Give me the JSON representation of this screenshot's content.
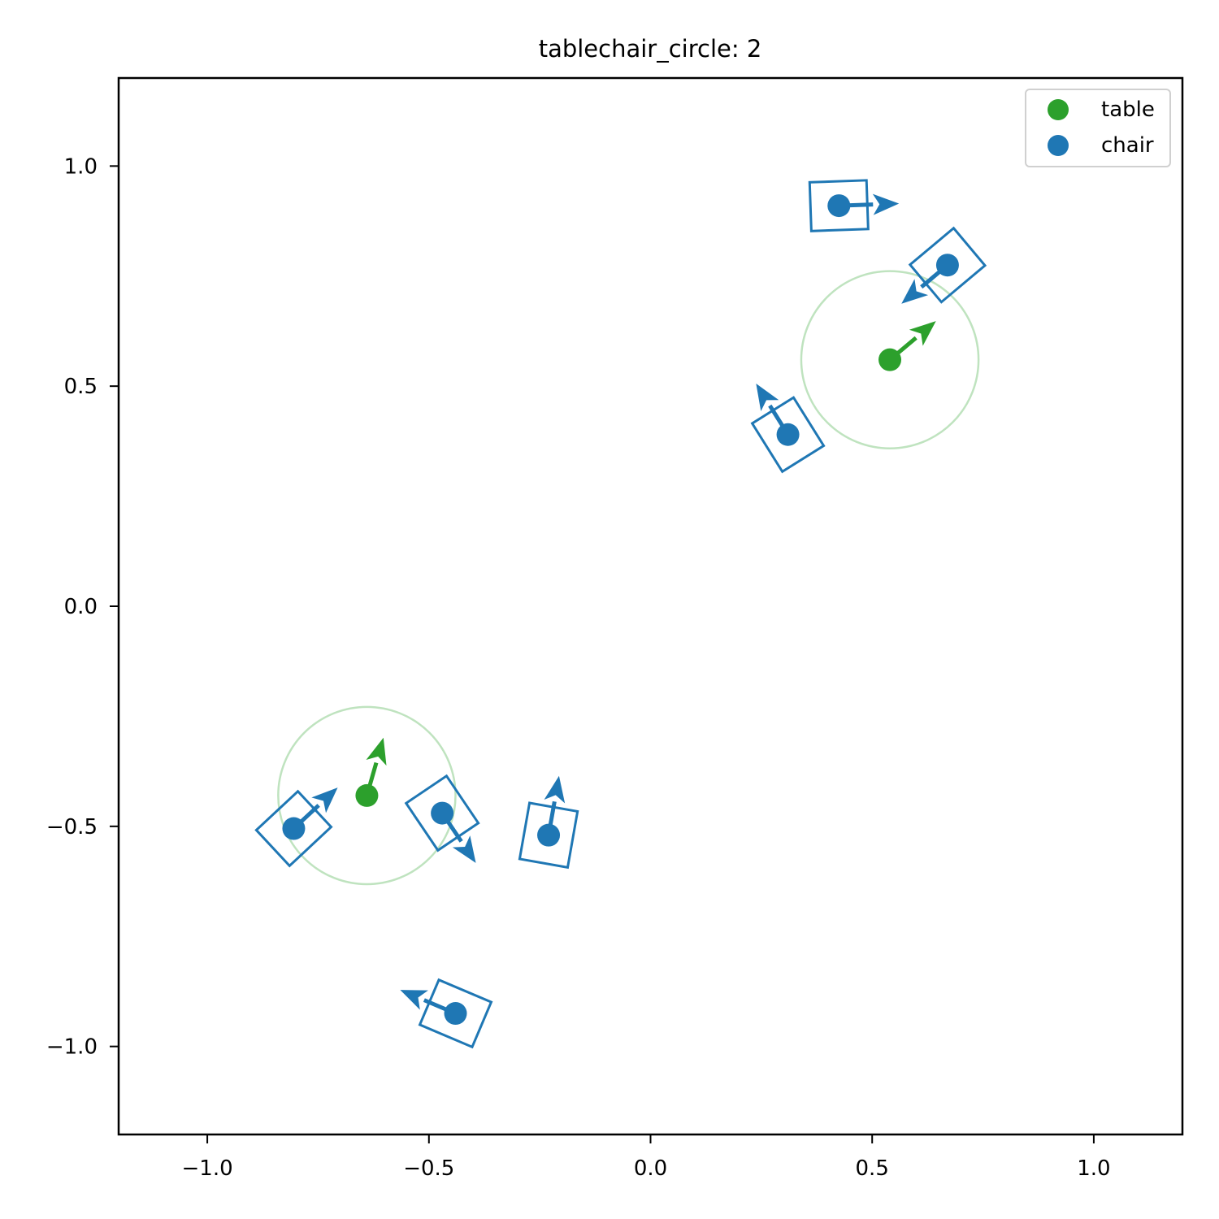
{
  "chart_data": {
    "type": "scatter",
    "title": "tablechair_circle: 2",
    "xlabel": "",
    "ylabel": "",
    "xlim": [
      -1.2,
      1.2
    ],
    "ylim": [
      -1.2,
      1.2
    ],
    "grid": false,
    "legend_position": "top-right",
    "x_ticks": [
      -1.0,
      -0.5,
      0.0,
      0.5,
      1.0
    ],
    "x_tick_labels": [
      "−1.0",
      "−0.5",
      "0.0",
      "0.5",
      "1.0"
    ],
    "y_ticks": [
      1.0,
      0.5,
      0.0,
      -0.5,
      -1.0
    ],
    "y_tick_labels": [
      "1.0",
      "0.5",
      "0.0",
      "−0.5",
      "−1.0"
    ],
    "series": [
      {
        "name": "table",
        "color": "#2ca02c",
        "radius_color": "#bfe3bf",
        "points": [
          {
            "x": 0.54,
            "y": 0.56,
            "dir_deg": 40,
            "radius": 0.2
          },
          {
            "x": -0.64,
            "y": -0.43,
            "dir_deg": 74,
            "radius": 0.2
          }
        ]
      },
      {
        "name": "chair",
        "color": "#1f77b4",
        "points": [
          {
            "x": 0.425,
            "y": 0.91,
            "dir_deg": 2
          },
          {
            "x": 0.67,
            "y": 0.775,
            "dir_deg": 220
          },
          {
            "x": 0.31,
            "y": 0.39,
            "dir_deg": 122
          },
          {
            "x": -0.805,
            "y": -0.505,
            "dir_deg": 43
          },
          {
            "x": -0.47,
            "y": -0.47,
            "dir_deg": 304
          },
          {
            "x": -0.23,
            "y": -0.52,
            "dir_deg": 80
          },
          {
            "x": -0.44,
            "y": -0.925,
            "dir_deg": 157
          }
        ]
      }
    ]
  }
}
